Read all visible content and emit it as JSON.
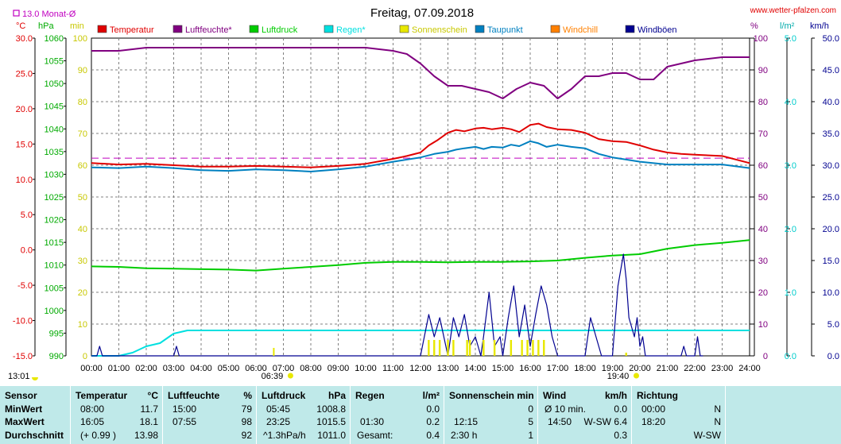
{
  "header": {
    "title": "Freitag, 07.09.2018",
    "website": "www.wetter-pfalzen.com",
    "monthly_avg_label": "13.0 Monat-Ø"
  },
  "axes": {
    "temp_unit": "°C",
    "pressure_unit": "hPa",
    "min_unit": "min",
    "humidity_unit": "%",
    "rain_unit": "l/m²",
    "wind_unit": "km/h",
    "temp_ticks": [
      "30.0",
      "25.0",
      "20.0",
      "15.0",
      "10.0",
      "5.0",
      "0.0",
      "-5.0",
      "-10.0",
      "-15.0"
    ],
    "pressure_ticks": [
      "1060",
      "1055",
      "1050",
      "1045",
      "1040",
      "1035",
      "1030",
      "1025",
      "1020",
      "1015",
      "1010",
      "1005",
      "1000",
      "995",
      "990"
    ],
    "min_ticks": [
      "100",
      "90",
      "80",
      "70",
      "60",
      "50",
      "40",
      "30",
      "20",
      "10",
      "0"
    ],
    "humidity_ticks": [
      "100",
      "90",
      "80",
      "70",
      "60",
      "50",
      "40",
      "30",
      "20",
      "10",
      "0"
    ],
    "rain_ticks": [
      "5.0",
      "4.0",
      "3.0",
      "2.0",
      "1.0",
      "0.0"
    ],
    "wind_ticks": [
      "50.0",
      "45.0",
      "40.0",
      "35.0",
      "30.0",
      "25.0",
      "20.0",
      "15.0",
      "10.0",
      "5.0",
      "0.0"
    ],
    "time_ticks": [
      "00:00",
      "01:00",
      "02:00",
      "03:00",
      "04:00",
      "05:00",
      "06:00",
      "07:00",
      "08:00",
      "09:00",
      "10:00",
      "11:00",
      "12:00",
      "13:00",
      "14:00",
      "15:00",
      "16:00",
      "17:00",
      "18:00",
      "19:00",
      "20:00",
      "21:00",
      "22:00",
      "23:00",
      "24:00"
    ],
    "sunrise": "06:39",
    "sunset": "19:40",
    "moon_time": "13:01"
  },
  "legend": [
    {
      "name": "Temperatur",
      "color": "#e00000"
    },
    {
      "name": "Luftfeuchte*",
      "color": "#800080"
    },
    {
      "name": "Luftdruck",
      "color": "#00cc00"
    },
    {
      "name": "Regen*",
      "color": "#00e0e0"
    },
    {
      "name": "Sonnenschein",
      "color": "#e8e800"
    },
    {
      "name": "Taupunkt",
      "color": "#0080c0"
    },
    {
      "name": "Windchill",
      "color": "#ff8000"
    },
    {
      "name": "Windböen",
      "color": "#000090"
    }
  ],
  "chart_data": {
    "type": "line",
    "x_unit": "hour of day",
    "xlim": [
      0,
      24
    ],
    "temperature_ylim": [
      -15,
      30
    ],
    "monthly_avg_temperature": 13.0,
    "series": [
      {
        "name": "Temperatur",
        "axis": "°C",
        "x": [
          0,
          1,
          2,
          3,
          4,
          5,
          6,
          7,
          8,
          9,
          10,
          11,
          11.5,
          12,
          12.3,
          12.6,
          13,
          13.3,
          13.6,
          14,
          14.3,
          14.6,
          15,
          15.3,
          15.6,
          16,
          16.3,
          16.6,
          17,
          17.5,
          18,
          18.5,
          19,
          19.5,
          20,
          20.5,
          21,
          21.5,
          22,
          23,
          24
        ],
        "y": [
          12.3,
          12.1,
          12.2,
          12.0,
          11.8,
          11.8,
          11.9,
          11.8,
          11.7,
          11.9,
          12.2,
          12.9,
          13.3,
          13.8,
          14.8,
          15.5,
          16.6,
          17.0,
          16.8,
          17.2,
          17.3,
          17.1,
          17.3,
          17.1,
          16.7,
          17.7,
          17.9,
          17.4,
          17.1,
          17.0,
          16.6,
          15.7,
          15.4,
          15.3,
          14.8,
          14.2,
          13.8,
          13.6,
          13.5,
          13.3,
          12.3
        ]
      },
      {
        "name": "Luftfeuchte*",
        "axis": "%",
        "x": [
          0,
          1,
          2,
          3,
          4,
          5,
          6,
          7,
          8,
          9,
          10,
          11,
          11.5,
          12,
          12.5,
          13,
          13.5,
          14,
          14.5,
          15,
          15.5,
          16,
          16.5,
          17,
          17.5,
          18,
          18.5,
          19,
          19.5,
          20,
          20.5,
          21,
          22,
          23,
          24
        ],
        "y": [
          96,
          96,
          97,
          97,
          97,
          97,
          97,
          97,
          97,
          97,
          97,
          96,
          95,
          92,
          88,
          85,
          85,
          84,
          83,
          81,
          84,
          86,
          85,
          81,
          84,
          88,
          88,
          89,
          89,
          87,
          87,
          91,
          93,
          94,
          94
        ]
      },
      {
        "name": "Luftdruck",
        "axis": "hPa",
        "x": [
          0,
          1,
          2,
          3,
          4,
          5,
          6,
          7,
          8,
          9,
          10,
          11,
          12,
          13,
          14,
          15,
          16,
          17,
          18,
          19,
          20,
          21,
          22,
          23,
          24
        ],
        "y": [
          1009.7,
          1009.6,
          1009.3,
          1009.2,
          1009.1,
          1009.0,
          1008.8,
          1009.2,
          1009.6,
          1010.0,
          1010.5,
          1010.7,
          1010.7,
          1010.6,
          1010.7,
          1010.7,
          1010.8,
          1011.0,
          1011.6,
          1012.1,
          1012.4,
          1013.6,
          1014.4,
          1014.9,
          1015.5
        ]
      },
      {
        "name": "Regen*",
        "axis": "l/m²",
        "x": [
          0,
          1,
          1.5,
          2,
          2.5,
          3,
          3.5,
          4,
          5,
          6,
          7,
          8,
          9,
          10,
          11,
          12,
          13,
          14,
          15,
          16,
          17,
          18,
          19,
          20,
          21,
          22,
          23,
          24
        ],
        "y": [
          0,
          0,
          0.05,
          0.15,
          0.2,
          0.35,
          0.4,
          0.4,
          0.4,
          0.4,
          0.4,
          0.4,
          0.4,
          0.4,
          0.4,
          0.4,
          0.4,
          0.4,
          0.4,
          0.4,
          0.4,
          0.4,
          0.4,
          0.4,
          0.4,
          0.4,
          0.4,
          0.4
        ]
      },
      {
        "name": "Taupunkt",
        "axis": "°C",
        "x": [
          0,
          1,
          2,
          3,
          4,
          5,
          6,
          7,
          8,
          9,
          10,
          11,
          11.5,
          12,
          12.5,
          13,
          13.3,
          13.6,
          14,
          14.3,
          14.6,
          15,
          15.3,
          15.6,
          16,
          16.3,
          16.6,
          17,
          17.5,
          18,
          18.5,
          19,
          19.5,
          20,
          21,
          22,
          23,
          24
        ],
        "y": [
          11.7,
          11.6,
          11.8,
          11.6,
          11.3,
          11.2,
          11.4,
          11.3,
          11.1,
          11.4,
          11.8,
          12.5,
          12.8,
          13.1,
          13.6,
          13.9,
          14.2,
          14.4,
          14.6,
          14.3,
          14.6,
          14.5,
          14.9,
          14.7,
          15.4,
          15.1,
          14.6,
          14.9,
          14.6,
          14.4,
          13.6,
          13.1,
          12.8,
          12.5,
          12.1,
          12.1,
          12.1,
          11.6
        ]
      },
      {
        "name": "Windböen",
        "axis": "km/h",
        "x": [
          0,
          0.2,
          0.3,
          0.4,
          0.5,
          3.0,
          3.1,
          3.2,
          3.3,
          12.0,
          12.3,
          12.5,
          12.7,
          13.0,
          13.2,
          13.4,
          13.6,
          13.8,
          14.0,
          14.2,
          14.3,
          14.5,
          14.7,
          14.9,
          15.0,
          15.2,
          15.4,
          15.6,
          15.8,
          16.0,
          16.2,
          16.4,
          16.6,
          16.8,
          17.0,
          17.3,
          18.0,
          18.2,
          18.4,
          18.6,
          19.0,
          19.2,
          19.4,
          19.5,
          19.6,
          19.8,
          19.9,
          20.0,
          20.1,
          20.2,
          20.4,
          21.5,
          21.6,
          21.7,
          22.0,
          22.1,
          22.2,
          22.3
        ],
        "y": [
          0,
          0,
          1.5,
          0,
          0,
          0,
          1.5,
          0,
          0,
          0,
          6.5,
          3.0,
          6.0,
          0,
          6.0,
          3.0,
          6.5,
          1.5,
          3.0,
          0,
          3.0,
          10.0,
          1.5,
          3.0,
          0,
          6.0,
          11.0,
          3.0,
          8.0,
          1.5,
          6.5,
          11.0,
          8.0,
          3.0,
          0,
          0,
          0,
          6.0,
          3.0,
          0,
          0,
          11.0,
          16.0,
          12.0,
          6.0,
          3.0,
          6.0,
          1.5,
          3.0,
          0,
          0,
          0,
          1.5,
          0,
          0,
          3.0,
          0,
          0
        ]
      },
      {
        "name": "Sonnenschein",
        "axis": "min",
        "x": [
          12.3,
          12.5,
          12.7,
          13.0,
          13.2,
          13.7,
          13.8,
          14.0,
          14.3,
          14.7,
          14.8,
          15.3,
          15.7,
          15.9,
          16.1,
          16.3,
          16.5,
          16.7,
          19.5
        ],
        "y": [
          5,
          5,
          5,
          5,
          5,
          5,
          5,
          0,
          5,
          5,
          0,
          5,
          5,
          5,
          5,
          5,
          5,
          0,
          1
        ]
      },
      {
        "name": "Windchill",
        "axis": "°C",
        "x": [],
        "y": []
      }
    ]
  },
  "stats": {
    "sensor": {
      "title": "Sensor",
      "rows": [
        "MinWert",
        "MaxWert",
        "Durchschnitt"
      ]
    },
    "temperatur": {
      "title": "Temperatur",
      "unit": "°C",
      "rows": [
        [
          "08:00",
          "11.7"
        ],
        [
          "16:05",
          "18.1"
        ],
        [
          "(+ 0.99 )",
          "13.98"
        ]
      ]
    },
    "luftfeuchte": {
      "title": "Luftfeuchte",
      "unit": "%",
      "rows": [
        [
          "15:00",
          "79"
        ],
        [
          "07:55",
          "98"
        ],
        [
          "",
          "92"
        ]
      ]
    },
    "luftdruck": {
      "title": "Luftdruck",
      "unit": "hPa",
      "rows": [
        [
          "05:45",
          "1008.8"
        ],
        [
          "23:25",
          "1015.5"
        ],
        [
          "^1.3hPa/h",
          "1011.0"
        ]
      ]
    },
    "regen": {
      "title": "Regen",
      "unit": "l/m²",
      "rows": [
        [
          "",
          "0.0"
        ],
        [
          "01:30",
          "0.2"
        ],
        [
          "Gesamt:",
          "0.4"
        ]
      ]
    },
    "sonne": {
      "title": "Sonnenschein min",
      "rows": [
        [
          "",
          "0"
        ],
        [
          "12:15",
          "5"
        ],
        [
          "2:30 h",
          "1"
        ]
      ]
    },
    "wind": {
      "title": "Wind",
      "unit": "km/h",
      "rows": [
        [
          "Ø 10 min.",
          "0.0"
        ],
        [
          "14:50",
          "W-SW 6.4"
        ],
        [
          "",
          "0.3"
        ]
      ]
    },
    "richtung": {
      "title": "Richtung",
      "rows": [
        [
          "00:00",
          "N"
        ],
        [
          "18:20",
          "N"
        ],
        [
          "",
          "W-SW"
        ]
      ]
    }
  }
}
